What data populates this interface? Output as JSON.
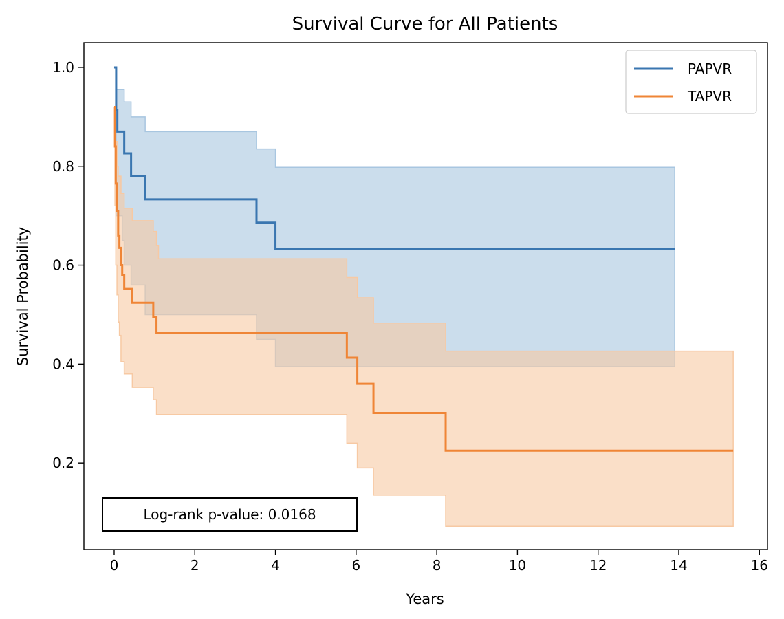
{
  "chart_data": {
    "type": "line",
    "title": "Survival Curve for All Patients",
    "xlabel": "Years",
    "ylabel": "Survival Probability",
    "xlim": [
      -0.75,
      16.2
    ],
    "ylim": [
      0.025,
      1.05
    ],
    "xticks": [
      0,
      2,
      4,
      6,
      8,
      10,
      12,
      14,
      16
    ],
    "yticks": [
      0.2,
      0.4,
      0.6,
      0.8,
      1.0
    ],
    "grid": false,
    "legend": "top-right",
    "annotation": "Log-rank p-value: 0.0168",
    "series": [
      {
        "name": "PAPVR",
        "color": "#3a76b0",
        "band_color": "#a8c6e0",
        "steps": [
          [
            0,
            1.0
          ],
          [
            0.05,
            0.913
          ],
          [
            0.08,
            0.87
          ],
          [
            0.25,
            0.826
          ],
          [
            0.42,
            0.78
          ],
          [
            0.77,
            0.733
          ],
          [
            3.53,
            0.686
          ],
          [
            4.0,
            0.633
          ],
          [
            13.9,
            0.633
          ]
        ],
        "ci_upper": [
          [
            0,
            1.0
          ],
          [
            0.05,
            0.955
          ],
          [
            0.25,
            0.93
          ],
          [
            0.42,
            0.9
          ],
          [
            0.77,
            0.87
          ],
          [
            3.53,
            0.835
          ],
          [
            4.0,
            0.798
          ],
          [
            13.9,
            0.798
          ]
        ],
        "ci_lower": [
          [
            0,
            1.0
          ],
          [
            0.05,
            0.7
          ],
          [
            0.2,
            0.65
          ],
          [
            0.25,
            0.6
          ],
          [
            0.42,
            0.56
          ],
          [
            0.77,
            0.5
          ],
          [
            3.53,
            0.45
          ],
          [
            4.0,
            0.395
          ],
          [
            13.9,
            0.395
          ]
        ]
      },
      {
        "name": "TAPVR",
        "color": "#ef8536",
        "band_color": "#f7c9a3",
        "steps": [
          [
            0,
            0.92
          ],
          [
            0.02,
            0.84
          ],
          [
            0.04,
            0.765
          ],
          [
            0.07,
            0.71
          ],
          [
            0.1,
            0.66
          ],
          [
            0.13,
            0.635
          ],
          [
            0.17,
            0.6
          ],
          [
            0.2,
            0.58
          ],
          [
            0.25,
            0.552
          ],
          [
            0.45,
            0.524
          ],
          [
            0.97,
            0.495
          ],
          [
            1.05,
            0.463
          ],
          [
            5.77,
            0.413
          ],
          [
            6.03,
            0.36
          ],
          [
            6.43,
            0.301
          ],
          [
            8.22,
            0.225
          ],
          [
            15.35,
            0.225
          ]
        ],
        "ci_upper": [
          [
            0,
            0.92
          ],
          [
            0.02,
            0.9
          ],
          [
            0.04,
            0.85
          ],
          [
            0.07,
            0.8
          ],
          [
            0.1,
            0.78
          ],
          [
            0.17,
            0.745
          ],
          [
            0.25,
            0.715
          ],
          [
            0.45,
            0.69
          ],
          [
            0.97,
            0.668
          ],
          [
            1.05,
            0.64
          ],
          [
            1.1,
            0.613
          ],
          [
            5.77,
            0.575
          ],
          [
            6.03,
            0.534
          ],
          [
            6.43,
            0.483
          ],
          [
            8.22,
            0.426
          ],
          [
            15.35,
            0.426
          ]
        ],
        "ci_lower": [
          [
            0,
            0.92
          ],
          [
            0.02,
            0.72
          ],
          [
            0.04,
            0.6
          ],
          [
            0.07,
            0.54
          ],
          [
            0.1,
            0.485
          ],
          [
            0.13,
            0.458
          ],
          [
            0.17,
            0.405
          ],
          [
            0.25,
            0.38
          ],
          [
            0.45,
            0.353
          ],
          [
            0.97,
            0.328
          ],
          [
            1.05,
            0.298
          ],
          [
            5.77,
            0.24
          ],
          [
            6.03,
            0.19
          ],
          [
            6.43,
            0.135
          ],
          [
            8.22,
            0.072
          ],
          [
            15.35,
            0.072
          ]
        ]
      }
    ]
  }
}
